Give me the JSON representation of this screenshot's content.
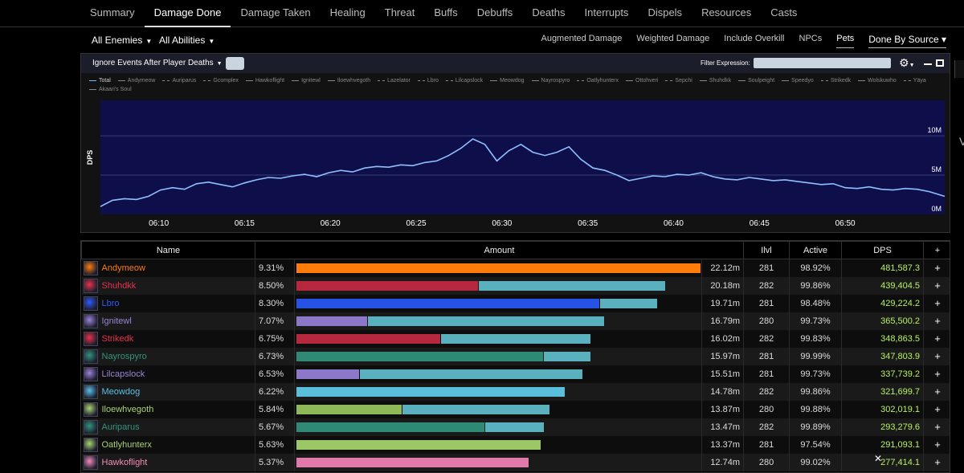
{
  "tabs": [
    "Summary",
    "Damage Done",
    "Damage Taken",
    "Healing",
    "Threat",
    "Buffs",
    "Debuffs",
    "Deaths",
    "Interrupts",
    "Dispels",
    "Resources",
    "Casts"
  ],
  "active_tab": 1,
  "filters": {
    "enemies_label": "All Enemies",
    "abilities_label": "All Abilities",
    "options": [
      "Augmented Damage",
      "Weighted Damage",
      "Include Overkill",
      "NPCs",
      "Pets"
    ],
    "selected_option": "Pets",
    "source_label": "Done By Source"
  },
  "graph": {
    "ignore_label": "Ignore Events After Player Deaths",
    "filter_label": "Filter Expression:",
    "filter_value": "",
    "legend": [
      {
        "name": "Total",
        "dash": false
      },
      {
        "name": "Andymeow",
        "dash": false
      },
      {
        "name": "Auriparus",
        "dash": true
      },
      {
        "name": "Gcomplex",
        "dash": true
      },
      {
        "name": "Hawkoflight",
        "dash": false
      },
      {
        "name": "Ignitewl",
        "dash": false
      },
      {
        "name": "Iloewhvegoth",
        "dash": false
      },
      {
        "name": "Lazelator",
        "dash": true
      },
      {
        "name": "Lbro",
        "dash": true
      },
      {
        "name": "Lilcapslock",
        "dash": true
      },
      {
        "name": "Meowdog",
        "dash": false
      },
      {
        "name": "Nayrospyro",
        "dash": false
      },
      {
        "name": "Oatlyhunterx",
        "dash": true
      },
      {
        "name": "Ottohveri",
        "dash": false
      },
      {
        "name": "Sepchi",
        "dash": true
      },
      {
        "name": "Shuhdkk",
        "dash": false
      },
      {
        "name": "Soulpeight",
        "dash": false
      },
      {
        "name": "Speedyo",
        "dash": false
      },
      {
        "name": "Strikedk",
        "dash": true
      },
      {
        "name": "Wolskuwho",
        "dash": false
      },
      {
        "name": "Yäya",
        "dash": true
      },
      {
        "name": "Akaari's Soul",
        "dash": false
      }
    ]
  },
  "chart_data": {
    "type": "line",
    "ylabel": "DPS",
    "x_ticks": [
      "06:10",
      "06:15",
      "06:20",
      "06:25",
      "06:30",
      "06:35",
      "06:40",
      "06:45",
      "06:50"
    ],
    "y_ticks": [
      "0M",
      "5M",
      "10M"
    ],
    "ylim": [
      0,
      14.5
    ],
    "y_units": "M",
    "xlim_minutes": [
      6.6,
      55.8
    ],
    "series": [
      {
        "name": "Total",
        "color": "#8fbfff",
        "x": [
          6.6,
          7.3,
          8,
          8.7,
          9.4,
          10.1,
          10.8,
          11.5,
          12.2,
          12.9,
          13.6,
          14.3,
          15,
          15.7,
          16.4,
          17.1,
          17.8,
          18.5,
          19.2,
          19.9,
          20.6,
          21.3,
          22,
          22.7,
          23.4,
          24.1,
          24.8,
          25.5,
          26.2,
          26.9,
          27.6,
          28.3,
          29,
          29.7,
          30.4,
          31.1,
          31.8,
          32.5,
          33.2,
          33.9,
          34.6,
          35.3,
          36,
          36.7,
          37.4,
          38.1,
          38.8,
          39.5,
          40.2,
          40.9,
          41.6,
          42.3,
          43,
          43.7,
          44.4,
          45.1,
          45.8,
          46.5,
          47.2,
          47.9,
          48.6,
          49.3,
          50,
          50.7,
          51.4,
          52.1,
          52.8,
          53.5,
          54.2,
          54.9,
          55.8
        ],
        "y": [
          1.0,
          1.8,
          2.0,
          1.9,
          2.3,
          3.1,
          3.4,
          3.2,
          3.9,
          4.1,
          3.8,
          3.5,
          4.0,
          4.4,
          4.7,
          4.6,
          4.9,
          5.1,
          4.8,
          5.3,
          5.6,
          5.4,
          5.9,
          6.1,
          6.0,
          6.3,
          6.2,
          6.6,
          6.8,
          7.5,
          8.4,
          9.6,
          8.9,
          6.8,
          8.1,
          8.9,
          7.9,
          7.5,
          7.9,
          8.6,
          7.0,
          5.9,
          5.6,
          5.0,
          4.3,
          4.6,
          4.9,
          4.8,
          5.1,
          5.0,
          5.3,
          4.8,
          4.5,
          4.4,
          4.7,
          4.5,
          4.3,
          4.4,
          4.2,
          4.0,
          3.8,
          3.9,
          3.4,
          3.3,
          3.5,
          3.2,
          3.1,
          3.3,
          3.2,
          2.9,
          2.3
        ]
      }
    ]
  },
  "table": {
    "headers": [
      "Name",
      "Amount",
      "Ilvl",
      "Active",
      "DPS",
      "+"
    ],
    "rows": [
      {
        "name": "Andymeow",
        "color": "#ff7c0a",
        "icon": "mage-frost-icon",
        "pct": "9.31%",
        "bar_primary": 1.0,
        "bar_secondary": 0.0,
        "bar_color": "#ff7c0a",
        "amount": "22.12m",
        "ilvl": "281",
        "active": "98.92%",
        "dps": "481,587.3"
      },
      {
        "name": "Shuhdkk",
        "color": "#e8324a",
        "icon": "death-knight-icon",
        "pct": "8.50%",
        "bar_primary": 0.45,
        "bar_secondary": 0.46,
        "bar_color": "#b5283e",
        "amount": "20.18m",
        "ilvl": "282",
        "active": "99.86%",
        "dps": "439,404.5"
      },
      {
        "name": "Lbro",
        "color": "#2e5bff",
        "icon": "shaman-icon",
        "pct": "8.30%",
        "bar_primary": 0.75,
        "bar_secondary": 0.14,
        "bar_color": "#2653e6",
        "amount": "19.71m",
        "ilvl": "281",
        "active": "98.48%",
        "dps": "429,224.2"
      },
      {
        "name": "Ignitewl",
        "color": "#9c84d8",
        "icon": "warlock-icon",
        "pct": "7.07%",
        "bar_primary": 0.175,
        "bar_secondary": 0.585,
        "bar_color": "#8c78c8",
        "amount": "16.79m",
        "ilvl": "280",
        "active": "99.73%",
        "dps": "365,500.2"
      },
      {
        "name": "Strikedk",
        "color": "#e8324a",
        "icon": "death-knight-icon",
        "pct": "6.75%",
        "bar_primary": 0.355,
        "bar_secondary": 0.37,
        "bar_color": "#b5283e",
        "amount": "16.02m",
        "ilvl": "282",
        "active": "99.83%",
        "dps": "348,863.5"
      },
      {
        "name": "Nayrospyro",
        "color": "#33937f",
        "icon": "evoker-icon",
        "pct": "6.73%",
        "bar_primary": 0.61,
        "bar_secondary": 0.115,
        "bar_color": "#2e8a74",
        "amount": "15.97m",
        "ilvl": "281",
        "active": "99.99%",
        "dps": "347,803.9"
      },
      {
        "name": "Lilcapslock",
        "color": "#9c84d8",
        "icon": "warlock-icon",
        "pct": "6.53%",
        "bar_primary": 0.155,
        "bar_secondary": 0.55,
        "bar_color": "#8c78c8",
        "amount": "15.51m",
        "ilvl": "281",
        "active": "99.73%",
        "dps": "337,739.2"
      },
      {
        "name": "Meowdog",
        "color": "#5bc0e8",
        "icon": "mage-icon",
        "pct": "6.22%",
        "bar_primary": 0.665,
        "bar_secondary": 0.0,
        "bar_color": "#5bbfdc",
        "amount": "14.78m",
        "ilvl": "282",
        "active": "99.86%",
        "dps": "321,699.7"
      },
      {
        "name": "Iloewhvegoth",
        "color": "#aad372",
        "icon": "hunter-icon",
        "pct": "5.84%",
        "bar_primary": 0.26,
        "bar_secondary": 0.365,
        "bar_color": "#8fb858",
        "amount": "13.87m",
        "ilvl": "280",
        "active": "99.88%",
        "dps": "302,019.1"
      },
      {
        "name": "Auriparus",
        "color": "#33937f",
        "icon": "evoker-icon",
        "pct": "5.67%",
        "bar_primary": 0.465,
        "bar_secondary": 0.145,
        "bar_color": "#2e8a74",
        "amount": "13.47m",
        "ilvl": "282",
        "active": "99.89%",
        "dps": "293,279.6"
      },
      {
        "name": "Oatlyhunterx",
        "color": "#aad372",
        "icon": "hunter-icon",
        "pct": "5.63%",
        "bar_primary": 0.605,
        "bar_secondary": 0.0,
        "bar_color": "#9cc766",
        "amount": "13.37m",
        "ilvl": "281",
        "active": "97.54%",
        "dps": "291,093.1"
      },
      {
        "name": "Hawkoflight",
        "color": "#f48cba",
        "icon": "paladin-icon",
        "pct": "5.37%",
        "bar_primary": 0.575,
        "bar_secondary": 0.0,
        "bar_color": "#e07aaa",
        "amount": "12.74m",
        "ilvl": "280",
        "active": "99.02%",
        "dps": "277,414.1"
      }
    ]
  },
  "colors": {
    "secondary_bar": "#5ab0bc",
    "dps_text": "#b8f261",
    "chart_bg": "#0e0f4a"
  }
}
